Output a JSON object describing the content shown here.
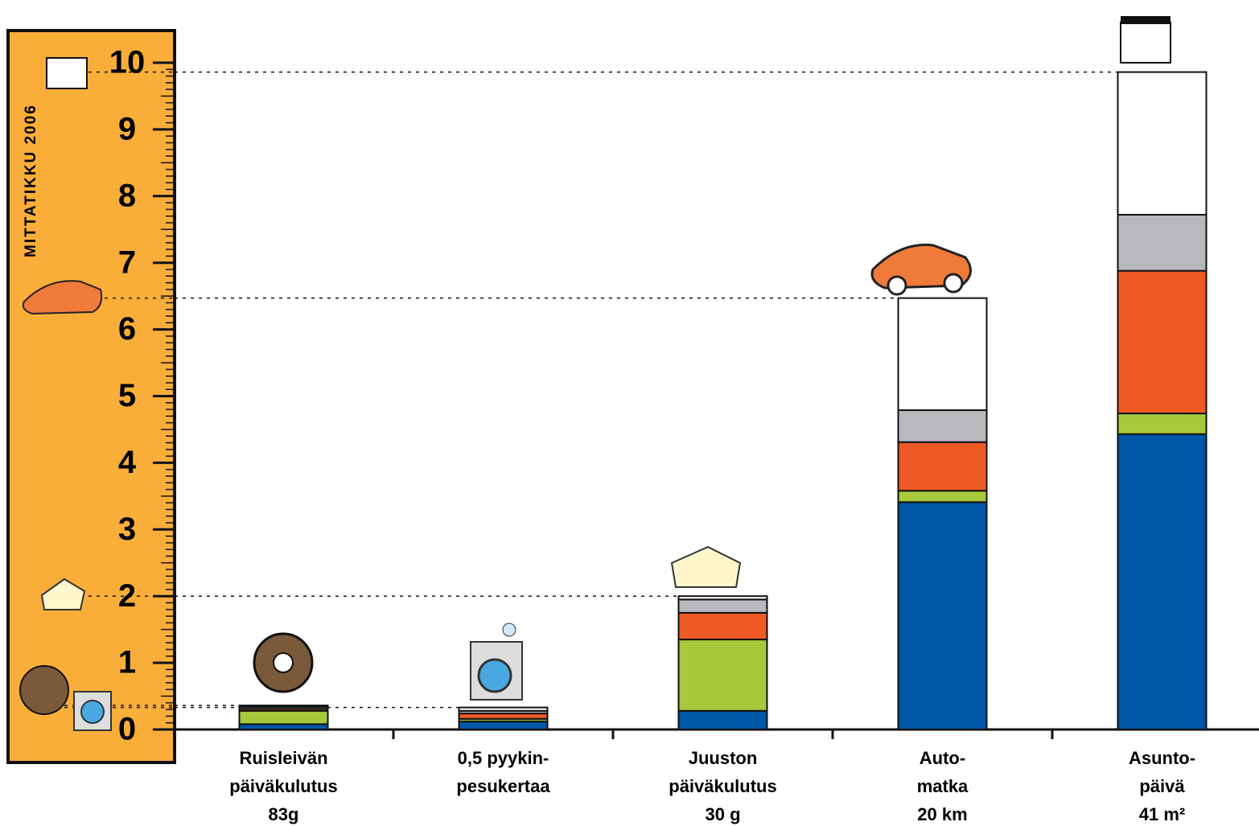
{
  "chart_data": {
    "type": "stacked_bar",
    "ruler_label": "Mittatikku 2006",
    "categories": [
      [
        "Ruisleivän",
        "päiväkulutus",
        "83g"
      ],
      [
        "0,5 pyykin-",
        "pesukertaa"
      ],
      [
        "Juuston",
        "päiväkulutus",
        "30 g"
      ],
      [
        "Auto-",
        "matka",
        "20 km"
      ],
      [
        "Asunto-",
        "päivä",
        "41 m²"
      ]
    ],
    "series": [
      {
        "color": "#0057a8",
        "values": [
          0.08,
          0.12,
          0.28,
          3.41,
          4.43
        ]
      },
      {
        "color": "#a8c83c",
        "values": [
          0.2,
          0.04,
          1.07,
          0.17,
          0.31
        ]
      },
      {
        "color": "#ef5a24",
        "values": [
          0.03,
          0.08,
          0.4,
          0.73,
          2.14
        ]
      },
      {
        "color": "#b8b9bd",
        "values": [
          0.03,
          0.04,
          0.2,
          0.48,
          0.84
        ]
      },
      {
        "color": "#ffffff",
        "values": [
          0.02,
          0.05,
          0.05,
          1.68,
          2.14
        ]
      }
    ],
    "ylim": [
      0,
      10
    ],
    "yticks": [
      0,
      1,
      2,
      3,
      4,
      5,
      6,
      7,
      8,
      9,
      10
    ]
  }
}
